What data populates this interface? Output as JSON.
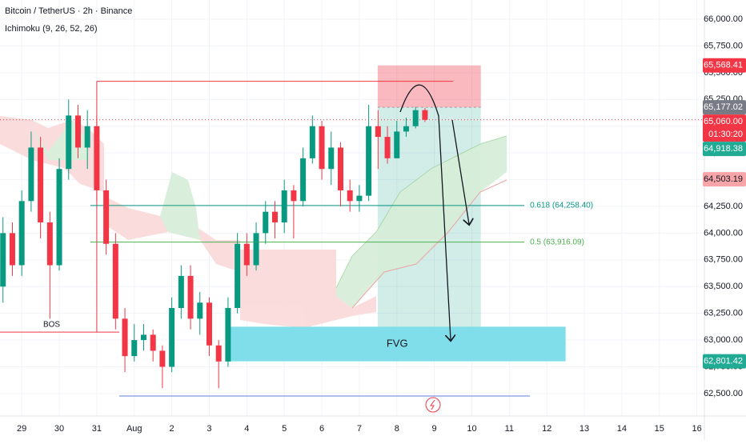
{
  "header": {
    "title": "Bitcoin / TetherUS · 2h · Binance",
    "indicator": "Ichimoku (9, 26, 52, 26)"
  },
  "chart_data": {
    "type": "candlestick",
    "x": [
      -0.5,
      -0.25,
      0,
      0.25,
      0.5,
      0.75,
      1,
      1.25,
      1.5,
      1.75,
      2,
      2.25,
      2.5,
      2.75,
      3,
      3.25,
      3.5,
      3.75,
      4,
      4.25,
      4.5,
      4.75,
      5,
      5.25,
      5.5,
      5.75,
      6,
      6.25,
      6.5,
      6.75,
      7,
      7.25,
      7.5,
      7.75,
      8,
      8.25,
      8.5,
      8.75,
      9,
      9.25,
      9.5,
      9.75,
      10,
      10.25,
      10.5,
      10.75
    ],
    "open": [
      63500,
      64000,
      63700,
      64300,
      64800,
      64100,
      63700,
      64600,
      65100,
      64800,
      65000,
      64400,
      63900,
      63200,
      62850,
      63000,
      63050,
      62900,
      62750,
      63300,
      63600,
      63200,
      63350,
      62950,
      62800,
      63300,
      63900,
      63700,
      64000,
      64200,
      64100,
      64400,
      64300,
      64700,
      65000,
      64600,
      64800,
      64400,
      64300,
      64350,
      65000,
      64900,
      64700,
      64950,
      65000,
      65150
    ],
    "high": [
      64150,
      64100,
      64400,
      64950,
      64900,
      64200,
      64700,
      65250,
      65200,
      65150,
      65100,
      64500,
      64000,
      63300,
      63150,
      63150,
      63100,
      62950,
      63400,
      63700,
      63700,
      63450,
      63400,
      63000,
      63400,
      64000,
      64000,
      64100,
      64300,
      64300,
      64500,
      64450,
      64800,
      65100,
      65050,
      64950,
      64850,
      64500,
      64450,
      65200,
      65150,
      65000,
      65050,
      65080,
      65180,
      65170
    ],
    "low": [
      63350,
      63600,
      63600,
      64200,
      63950,
      63200,
      63650,
      64500,
      64700,
      64600,
      64300,
      63800,
      63100,
      62700,
      62800,
      62900,
      62800,
      62550,
      62700,
      63200,
      63100,
      63050,
      62850,
      62550,
      62750,
      63250,
      63600,
      63650,
      63900,
      63950,
      64000,
      63950,
      64250,
      64650,
      64500,
      64450,
      64250,
      64200,
      64200,
      64300,
      64600,
      64650,
      64700,
      64900,
      64980,
      65040
    ],
    "close": [
      64000,
      63700,
      64300,
      64800,
      64100,
      63700,
      64600,
      65100,
      64800,
      65000,
      64400,
      63900,
      63200,
      62850,
      63000,
      63050,
      62900,
      62750,
      63300,
      63600,
      63200,
      63350,
      62950,
      62800,
      63300,
      63900,
      63700,
      64000,
      64200,
      64100,
      64400,
      64300,
      64700,
      65000,
      64600,
      64800,
      64400,
      64300,
      64350,
      65000,
      64900,
      64700,
      64950,
      65000,
      65150,
      65060
    ],
    "colors": {
      "up": "#089981",
      "down": "#f23645"
    },
    "xlim": [
      -0.58,
      18.2
    ],
    "xticks": [
      {
        "value": 0,
        "label": "29"
      },
      {
        "value": 1,
        "label": "30"
      },
      {
        "value": 2,
        "label": "31"
      },
      {
        "value": 3,
        "label": "Aug"
      },
      {
        "value": 4,
        "label": "2"
      },
      {
        "value": 5,
        "label": "3"
      },
      {
        "value": 6,
        "label": "4"
      },
      {
        "value": 7,
        "label": "5"
      },
      {
        "value": 8,
        "label": "6"
      },
      {
        "value": 9,
        "label": "7"
      },
      {
        "value": 10,
        "label": "8"
      },
      {
        "value": 11,
        "label": "9"
      },
      {
        "value": 12,
        "label": "10"
      },
      {
        "value": 13,
        "label": "11"
      },
      {
        "value": 14,
        "label": "12"
      },
      {
        "value": 15,
        "label": "13"
      },
      {
        "value": 16,
        "label": "14"
      },
      {
        "value": 17,
        "label": "15"
      },
      {
        "value": 18,
        "label": "16"
      }
    ],
    "ylim": [
      62290,
      66180
    ],
    "yticks": [
      {
        "value": 62500,
        "label": "62,500.00"
      },
      {
        "value": 62750,
        "label": "62,750.00"
      },
      {
        "value": 63000,
        "label": "63,000.00"
      },
      {
        "value": 63250,
        "label": "63,250.00"
      },
      {
        "value": 63500,
        "label": "63,500.00"
      },
      {
        "value": 63750,
        "label": "63,750.00"
      },
      {
        "value": 64000,
        "label": "64,000.00"
      },
      {
        "value": 64250,
        "label": "64,250.00"
      },
      {
        "value": 64500,
        "label": "64,500.00"
      },
      {
        "value": 64750,
        "label": "64,750.00"
      },
      {
        "value": 65000,
        "label": "65,000.00"
      },
      {
        "value": 65250,
        "label": "65,250.00"
      },
      {
        "value": 65500,
        "label": "65,500.00"
      },
      {
        "value": 65750,
        "label": "65,750.00"
      },
      {
        "value": 66000,
        "label": "66,000.00"
      }
    ],
    "grid": true,
    "price_labels": [
      {
        "value": 65568.41,
        "label": "65,568.41",
        "color": "#f23645",
        "text_color": "#ffffff"
      },
      {
        "value": 65177.02,
        "label": "65,177.02",
        "color": "#787b86",
        "text_color": "#ffffff"
      },
      {
        "value": 65060.0,
        "label": "65,060.00",
        "countdown": "01:30:20",
        "color": "#f23645",
        "text_color": "#ffffff"
      },
      {
        "value": 64918.38,
        "label": "64,918.38",
        "color": "#22ab94",
        "text_color": "#ffffff"
      },
      {
        "value": 64503.19,
        "label": "64,503.19",
        "color": "#f7a5a8",
        "text_color": "#131722"
      },
      {
        "value": 62801.42,
        "label": "62,801.42",
        "color": "#22ab94",
        "text_color": "#ffffff"
      }
    ],
    "levels": [
      {
        "label": "0.618 (64,258.40)",
        "value": 64258.4,
        "x": [
          1.83,
          13.4
        ],
        "color": "#089981"
      },
      {
        "label": "0.5 (63,916.09)",
        "value": 63916.09,
        "x": [
          1.83,
          13.4
        ],
        "color": "#4caf50"
      }
    ],
    "lines": [
      {
        "value": 65420,
        "x": [
          2.0,
          11.5
        ],
        "color": "#f23645"
      },
      {
        "value": 62477,
        "x": [
          2.6,
          13.55
        ],
        "color": "#5b7fd6"
      }
    ],
    "bos": {
      "label": "BOS",
      "value": 63075,
      "x": [
        -0.58,
        2.6
      ]
    },
    "fvg": {
      "label": "FVG",
      "low": 62801.42,
      "high": 63125,
      "x": [
        5.52,
        14.5
      ],
      "color": "#80deea"
    },
    "position": {
      "entry": 65177.02,
      "stop": 65568.41,
      "target": 63120,
      "x": [
        9.49,
        12.24
      ]
    }
  }
}
